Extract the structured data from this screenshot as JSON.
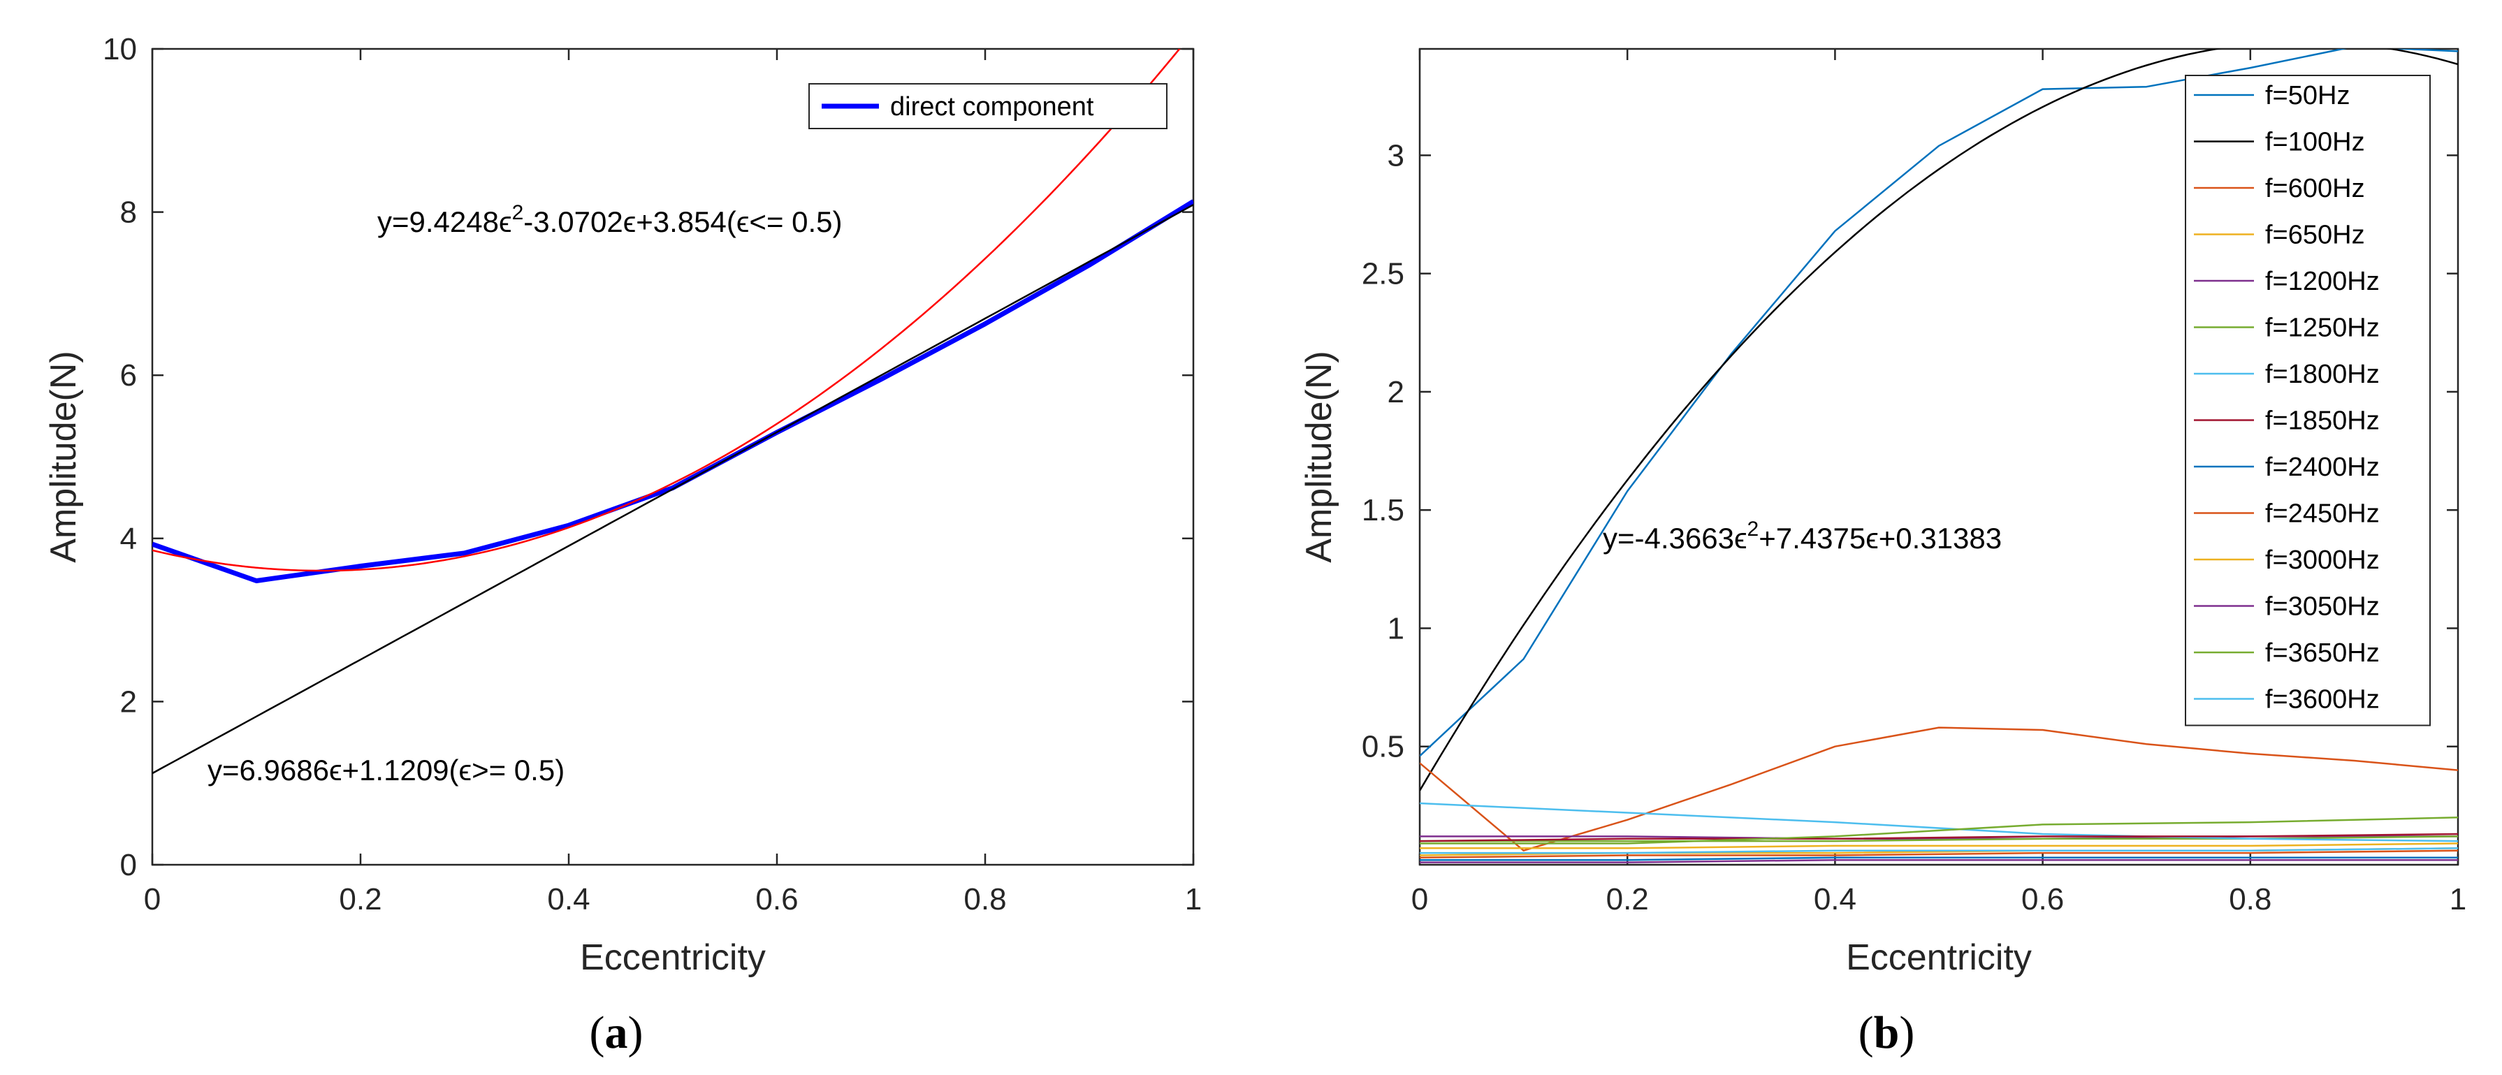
{
  "chart_data": [
    {
      "panel_label": "a",
      "type": "line",
      "title": "",
      "xlabel": "Eccentricity",
      "ylabel": "Amplitude(N)",
      "xlim": [
        0,
        1
      ],
      "ylim": [
        0,
        10
      ],
      "xticks": [
        0,
        0.2,
        0.4,
        0.6,
        0.8,
        1
      ],
      "xtick_labels": [
        "0",
        "0.2",
        "0.4",
        "0.6",
        "0.8",
        "1"
      ],
      "yticks": [
        0,
        2,
        4,
        6,
        8,
        10
      ],
      "ytick_labels": [
        "0",
        "2",
        "4",
        "6",
        "8",
        "10"
      ],
      "legend": {
        "position": "top-right",
        "entries": [
          "direct component"
        ]
      },
      "series": [
        {
          "name": "direct component",
          "color": "#0000ff",
          "width": "thick",
          "x": [
            0,
            0.1,
            0.2,
            0.3,
            0.4,
            0.5,
            0.6,
            0.7,
            0.8,
            0.9,
            1.0
          ],
          "y": [
            3.93,
            3.48,
            3.66,
            3.82,
            4.16,
            4.62,
            5.3,
            5.95,
            6.63,
            7.35,
            8.13
          ]
        },
        {
          "name": "quadratic fit",
          "color": "#ff0000",
          "fit": "quadratic",
          "coefficients": [
            9.4248,
            -3.0702,
            3.854
          ],
          "xrange": [
            0,
            1
          ]
        },
        {
          "name": "linear fit",
          "color": "#000000",
          "fit": "linear",
          "coefficients": [
            6.9686,
            1.1209
          ],
          "xrange": [
            0,
            1
          ]
        }
      ],
      "annotations": [
        {
          "text_pre": "y=9.4248",
          "sup": "2",
          "text_post": "-3.0702ϵ+3.854(ϵ<= 0.5)",
          "x": 0.22,
          "y": 7.9
        },
        {
          "text": "y=6.9686ϵ+1.1209(ϵ>= 0.5)",
          "x": 0.055,
          "y": 1.05
        }
      ]
    },
    {
      "panel_label": "b",
      "type": "line",
      "title": "",
      "xlabel": "Eccentricity",
      "ylabel": "Amplitude(N)",
      "xlim": [
        0,
        1
      ],
      "ylim": [
        0,
        3.45
      ],
      "xticks": [
        0,
        0.2,
        0.4,
        0.6,
        0.8,
        1
      ],
      "xtick_labels": [
        "0",
        "0.2",
        "0.4",
        "0.6",
        "0.8",
        "1"
      ],
      "yticks": [
        0.5,
        1,
        1.5,
        2,
        2.5,
        3
      ],
      "ytick_labels": [
        "0.5",
        "1",
        "1.5",
        "2",
        "2.5",
        "3"
      ],
      "legend": {
        "position": "top-right",
        "entries": [
          "f=50Hz",
          "f=100Hz",
          "f=600Hz",
          "f=650Hz",
          "f=1200Hz",
          "f=1250Hz",
          "f=1800Hz",
          "f=1850Hz",
          "f=2400Hz",
          "f=2450Hz",
          "f=3000Hz",
          "f=3050Hz",
          "f=3650Hz",
          "f=3600Hz"
        ]
      },
      "series": [
        {
          "name": "f=50Hz",
          "color": "#0072bd",
          "x": [
            0,
            0.1,
            0.2,
            0.3,
            0.4,
            0.5,
            0.6,
            0.7,
            0.8,
            0.9,
            1.0
          ],
          "y": [
            0.46,
            0.87,
            1.58,
            2.16,
            2.68,
            3.04,
            3.28,
            3.29,
            3.37,
            3.46,
            3.44
          ]
        },
        {
          "name": "f=100Hz",
          "color": "#000000",
          "fit": "quadratic",
          "coefficients": [
            -4.3663,
            7.4375,
            0.31383
          ],
          "xrange": [
            0,
            1
          ]
        },
        {
          "name": "f=600Hz",
          "color": "#d95319",
          "x": [
            0,
            0.1,
            0.2,
            0.3,
            0.4,
            0.5,
            0.6,
            0.7,
            0.8,
            0.9,
            1.0
          ],
          "y": [
            0.43,
            0.06,
            0.19,
            0.34,
            0.5,
            0.58,
            0.57,
            0.51,
            0.47,
            0.44,
            0.4
          ]
        },
        {
          "name": "f=650Hz",
          "color": "#edb120",
          "x": [
            0,
            0.2,
            0.4,
            0.6,
            0.8,
            1.0
          ],
          "y": [
            0.04,
            0.05,
            0.05,
            0.06,
            0.06,
            0.07
          ]
        },
        {
          "name": "f=1200Hz",
          "color": "#7e2f8e",
          "x": [
            0,
            0.2,
            0.4,
            0.6,
            0.8,
            1.0
          ],
          "y": [
            0.12,
            0.12,
            0.11,
            0.11,
            0.12,
            0.12
          ]
        },
        {
          "name": "f=1250Hz",
          "color": "#77ac30",
          "x": [
            0,
            0.2,
            0.4,
            0.6,
            0.8,
            1.0
          ],
          "y": [
            0.1,
            0.1,
            0.1,
            0.11,
            0.11,
            0.12
          ]
        },
        {
          "name": "f=1800Hz",
          "color": "#4dbeee",
          "x": [
            0,
            0.2,
            0.4,
            0.6,
            0.8,
            1.0
          ],
          "y": [
            0.26,
            0.22,
            0.18,
            0.13,
            0.11,
            0.1
          ]
        },
        {
          "name": "f=1850Hz",
          "color": "#a2142f",
          "x": [
            0,
            0.2,
            0.4,
            0.6,
            0.8,
            1.0
          ],
          "y": [
            0.1,
            0.11,
            0.11,
            0.12,
            0.12,
            0.13
          ]
        },
        {
          "name": "f=2400Hz",
          "color": "#0072bd",
          "x": [
            0,
            0.2,
            0.4,
            0.6,
            0.8,
            1.0
          ],
          "y": [
            0.02,
            0.02,
            0.03,
            0.03,
            0.03,
            0.03
          ]
        },
        {
          "name": "f=2450Hz",
          "color": "#d95319",
          "x": [
            0,
            0.2,
            0.4,
            0.6,
            0.8,
            1.0
          ],
          "y": [
            0.03,
            0.04,
            0.04,
            0.05,
            0.05,
            0.06
          ]
        },
        {
          "name": "f=3000Hz",
          "color": "#edb120",
          "x": [
            0,
            0.2,
            0.4,
            0.6,
            0.8,
            1.0
          ],
          "y": [
            0.07,
            0.07,
            0.08,
            0.08,
            0.08,
            0.09
          ]
        },
        {
          "name": "f=3050Hz",
          "color": "#7e2f8e",
          "x": [
            0,
            0.2,
            0.4,
            0.6,
            0.8,
            1.0
          ],
          "y": [
            0.01,
            0.01,
            0.02,
            0.02,
            0.02,
            0.02
          ]
        },
        {
          "name": "f=3650Hz",
          "color": "#77ac30",
          "x": [
            0,
            0.2,
            0.4,
            0.6,
            0.8,
            1.0
          ],
          "y": [
            0.09,
            0.09,
            0.12,
            0.17,
            0.18,
            0.2
          ]
        },
        {
          "name": "f=3600Hz",
          "color": "#4dbeee",
          "x": [
            0,
            0.2,
            0.4,
            0.6,
            0.8,
            1.0
          ],
          "y": [
            0.05,
            0.05,
            0.06,
            0.06,
            0.06,
            0.07
          ]
        }
      ],
      "annotations": [
        {
          "text_pre": "y=-4.3663",
          "sup": "2",
          "text_post": "+7.4375ϵ+0.31383",
          "x": 0.175,
          "y": 1.32
        }
      ]
    }
  ]
}
